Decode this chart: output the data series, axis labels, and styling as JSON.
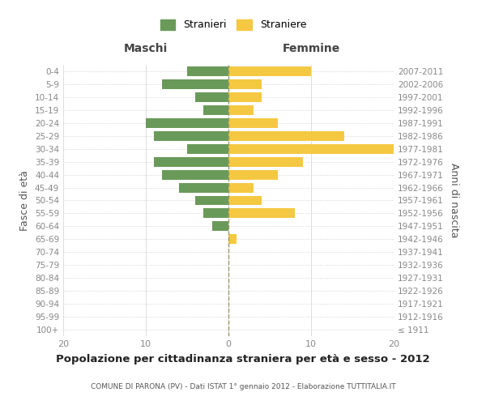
{
  "age_groups": [
    "100+",
    "95-99",
    "90-94",
    "85-89",
    "80-84",
    "75-79",
    "70-74",
    "65-69",
    "60-64",
    "55-59",
    "50-54",
    "45-49",
    "40-44",
    "35-39",
    "30-34",
    "25-29",
    "20-24",
    "15-19",
    "10-14",
    "5-9",
    "0-4"
  ],
  "anni_nascita": [
    "≤ 1911",
    "1912-1916",
    "1917-1921",
    "1922-1926",
    "1927-1931",
    "1932-1936",
    "1937-1941",
    "1942-1946",
    "1947-1951",
    "1952-1956",
    "1957-1961",
    "1962-1966",
    "1967-1971",
    "1972-1976",
    "1977-1981",
    "1982-1986",
    "1987-1991",
    "1992-1996",
    "1997-2001",
    "2002-2006",
    "2007-2011"
  ],
  "maschi": [
    0,
    0,
    0,
    0,
    0,
    0,
    0,
    0,
    2,
    3,
    4,
    6,
    8,
    9,
    5,
    9,
    10,
    3,
    4,
    8,
    5
  ],
  "femmine": [
    0,
    0,
    0,
    0,
    0,
    0,
    0,
    1,
    0,
    8,
    4,
    3,
    6,
    9,
    20,
    14,
    6,
    3,
    4,
    4,
    10
  ],
  "maschi_color": "#6a9a5a",
  "femmine_color": "#f5c842",
  "title": "Popolazione per cittadinanza straniera per età e sesso - 2012",
  "subtitle": "COMUNE DI PARONA (PV) - Dati ISTAT 1° gennaio 2012 - Elaborazione TUTTITALIA.IT",
  "ylabel_left": "Fasce di età",
  "ylabel_right": "Anni di nascita",
  "header_maschi": "Maschi",
  "header_femmine": "Femmine",
  "xlim": 20,
  "legend_stranieri": "Stranieri",
  "legend_straniere": "Straniere",
  "bg_color": "#ffffff",
  "grid_color": "#dddddd",
  "dashed_line_color": "#999966",
  "axis_label_color": "#555555",
  "tick_label_color": "#888888"
}
